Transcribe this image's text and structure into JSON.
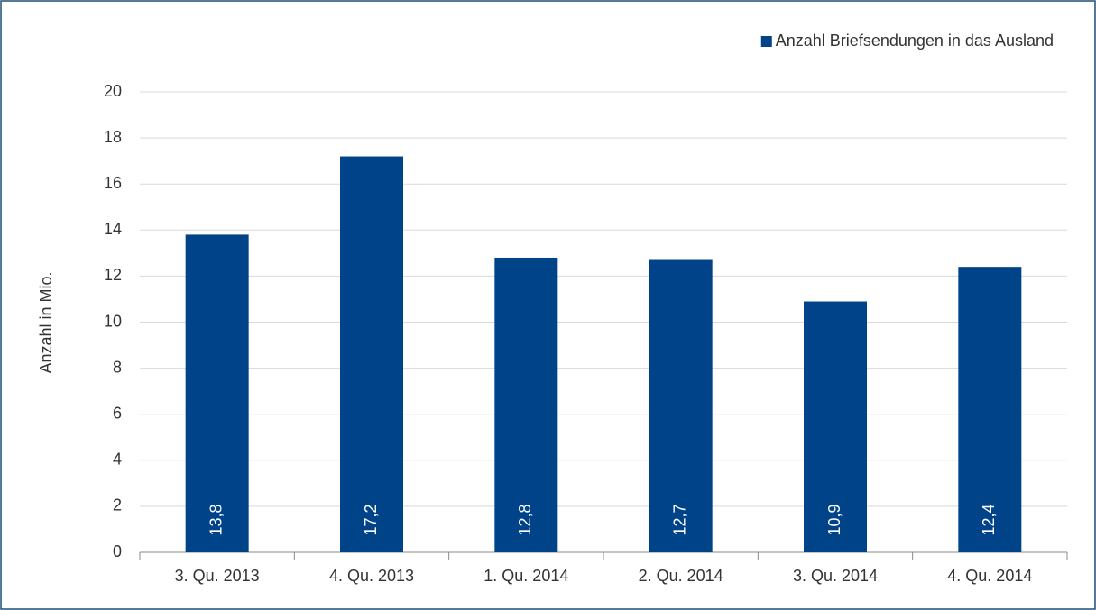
{
  "chart_data": {
    "type": "bar",
    "categories": [
      "3. Qu. 2013",
      "4. Qu. 2013",
      "1. Qu. 2014",
      "2. Qu. 2014",
      "3. Qu. 2014",
      "4. Qu. 2014"
    ],
    "series": [
      {
        "name": "Anzahl Briefsendungen in das Ausland",
        "color": "#004388",
        "values": [
          13.8,
          17.2,
          12.8,
          12.7,
          10.9,
          12.4
        ],
        "value_labels": [
          "13,8",
          "17,2",
          "12,8",
          "12,7",
          "10,9",
          "12,4"
        ]
      }
    ],
    "y_label": "Anzahl in Mio.",
    "ylim": [
      0,
      20
    ],
    "yticks": [
      0,
      2,
      4,
      6,
      8,
      10,
      12,
      14,
      16,
      18,
      20
    ],
    "grid": true,
    "legend": "top-right"
  }
}
